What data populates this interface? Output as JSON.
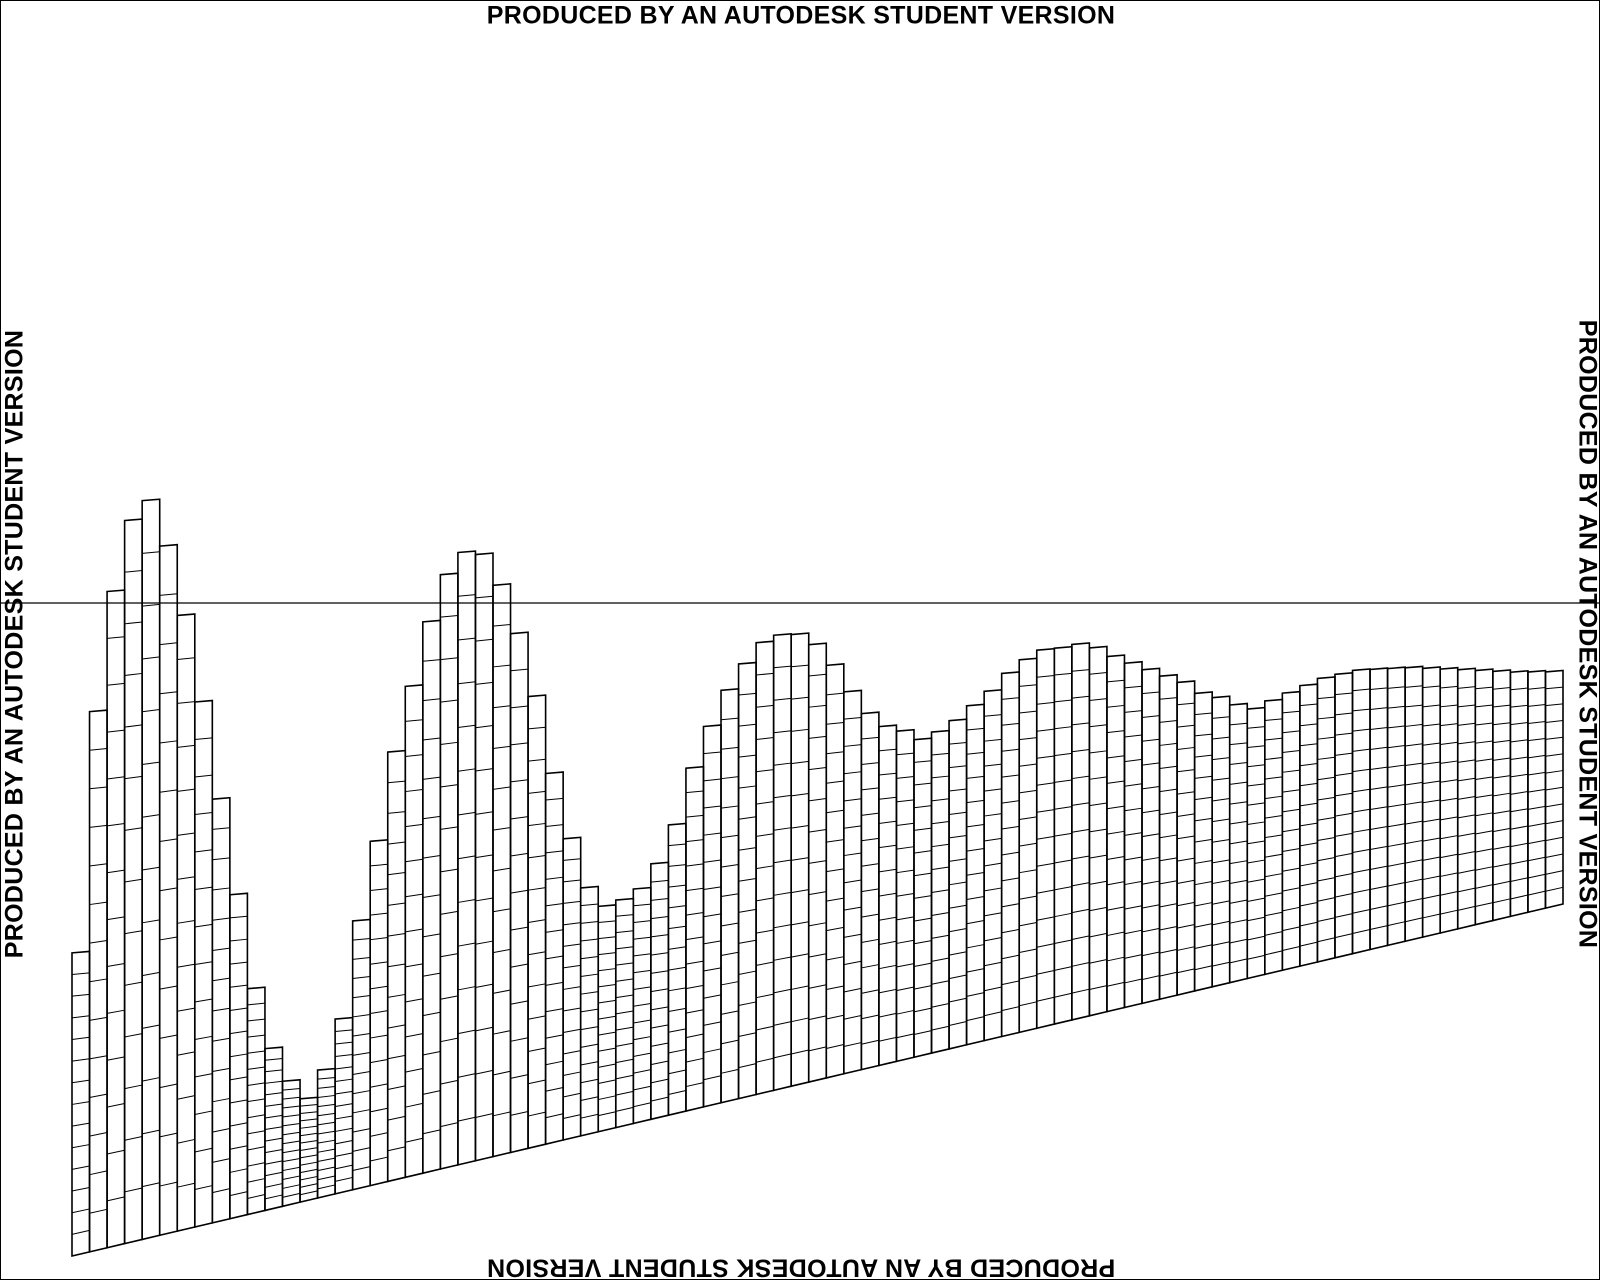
{
  "watermarks": {
    "top": "PRODUCED BY AN AUTODESK STUDENT VERSION",
    "bottom": "PRODUCED BY AN AUTODESK STUDENT VERSION",
    "left": "PRODUCED BY AN AUTODESK STUDENT VERSION",
    "right": "PRODUCED BY AN AUTODESK STUDENT VERSION"
  },
  "colors": {
    "line": "#000000",
    "background": "#ffffff"
  },
  "drawing": {
    "column_count": 85,
    "hatch_rows_per_column": 14,
    "column_tops_relative": [
      0.285,
      0.66,
      0.85,
      0.965,
      1.0,
      0.93,
      0.82,
      0.68,
      0.52,
      0.36,
      0.2,
      0.095,
      0.035,
      0.0,
      0.045,
      0.13,
      0.3,
      0.44,
      0.6,
      0.72,
      0.84,
      0.93,
      0.975,
      0.975,
      0.92,
      0.83,
      0.71,
      0.56,
      0.43,
      0.33,
      0.29,
      0.3,
      0.32,
      0.37,
      0.45,
      0.57,
      0.66,
      0.74,
      0.8,
      0.85,
      0.87,
      0.875,
      0.855,
      0.81,
      0.75,
      0.7,
      0.67,
      0.66,
      0.64,
      0.66,
      0.69,
      0.73,
      0.77,
      0.82,
      0.86,
      0.89,
      0.9,
      0.915,
      0.91,
      0.89,
      0.875,
      0.86,
      0.845,
      0.83,
      0.8,
      0.79,
      0.77,
      0.76,
      0.79,
      0.82,
      0.85,
      0.88,
      0.9,
      0.92,
      0.93,
      0.94,
      0.95,
      0.955,
      0.96,
      0.965,
      0.97,
      0.975,
      0.98,
      0.99,
      1.0
    ]
  }
}
